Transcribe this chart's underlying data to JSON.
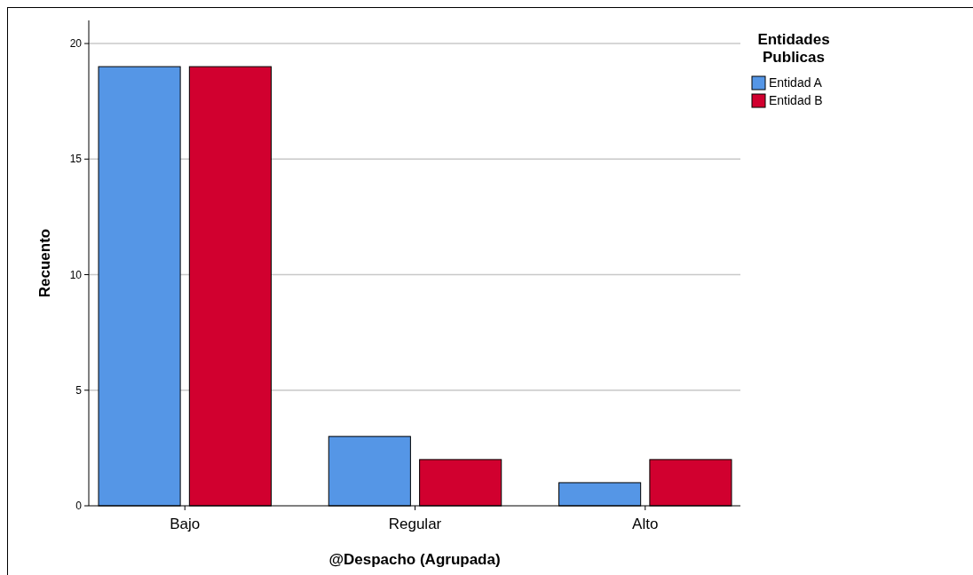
{
  "chart_data": {
    "type": "bar",
    "xlabel": "@Despacho (Agrupada)",
    "ylabel": "Recuento",
    "legend_title": "Entidades Publicas",
    "categories": [
      "Bajo",
      "Regular",
      "Alto"
    ],
    "series": [
      {
        "name": "Entidad A",
        "color": "#5596e6",
        "values": [
          19,
          3,
          1
        ]
      },
      {
        "name": "Entidad B",
        "color": "#d1002f",
        "values": [
          19,
          2,
          2
        ]
      }
    ],
    "ylim": [
      0,
      21
    ],
    "yticks": [
      0,
      5,
      10,
      15,
      20
    ],
    "grid": "y",
    "legend": "top right"
  }
}
